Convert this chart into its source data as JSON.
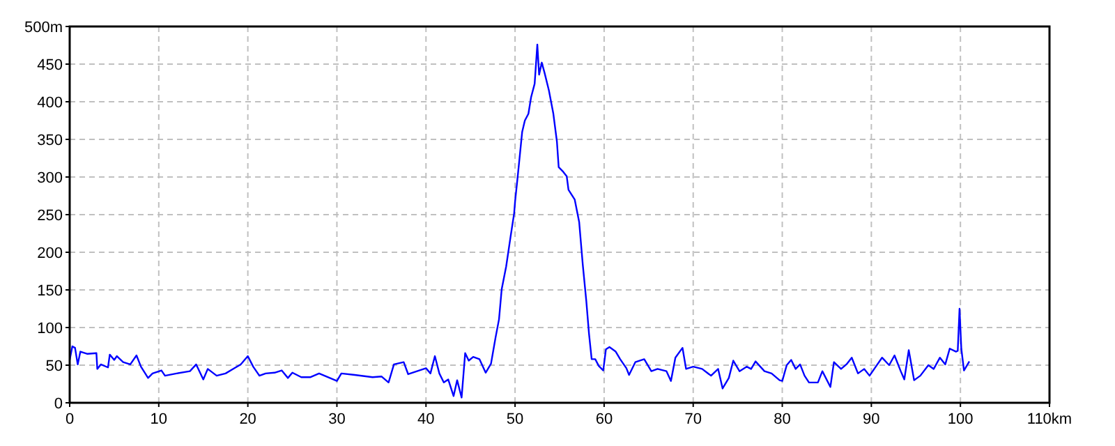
{
  "chart_data": {
    "type": "line",
    "xlim": [
      0,
      110
    ],
    "ylim": [
      0,
      500
    ],
    "xticks": [
      0,
      10,
      20,
      30,
      40,
      50,
      60,
      70,
      80,
      90,
      100,
      {
        "value": 110,
        "label": "110km"
      }
    ],
    "yticks": [
      0,
      50,
      100,
      150,
      200,
      250,
      300,
      350,
      400,
      450,
      {
        "value": 500,
        "label": "500m"
      }
    ],
    "grid": true,
    "line_style": "solid",
    "marker": "none",
    "series": [
      {
        "color": "#0000ff",
        "x": [
          0,
          0.3,
          0.6,
          0.9,
          1.2,
          2,
          3,
          3.1,
          3.5,
          4.3,
          4.5,
          5,
          5.3,
          6,
          6.8,
          7.5,
          8,
          8.8,
          9.3,
          10.3,
          10.7,
          12,
          13.5,
          14.2,
          15,
          15.5,
          16.5,
          17.5,
          18.5,
          19.2,
          20,
          20.6,
          21.3,
          22,
          23,
          23.8,
          24.5,
          25,
          26,
          27,
          28,
          30,
          30.5,
          32,
          34,
          35,
          35.8,
          36.4,
          37.5,
          38,
          39,
          40,
          40.5,
          41,
          41.5,
          42,
          42.5,
          43.1,
          43.5,
          44,
          44.4,
          44.8,
          45.3,
          46,
          46.7,
          47.3,
          47.8,
          48.2,
          48.5,
          49,
          49.5,
          49.9,
          50,
          50.3,
          50.8,
          51.1,
          51.5,
          51.8,
          52.2,
          52.5,
          52.7,
          53,
          53.3,
          53.8,
          54.3,
          54.7,
          54.9,
          55.4,
          55.8,
          56,
          56.7,
          57.2,
          57.6,
          58,
          58.3,
          58.6,
          59,
          59.4,
          59.9,
          60.2,
          60.6,
          61.3,
          61.8,
          62.5,
          62.8,
          63.5,
          64.5,
          65.3,
          66,
          67,
          67.5,
          68,
          68.8,
          69.2,
          70,
          71,
          72,
          72.8,
          73.3,
          74,
          74.5,
          75.2,
          76,
          76.5,
          77,
          78,
          78.8,
          79.7,
          80,
          80.5,
          81,
          81.5,
          82,
          82.5,
          83,
          84,
          84.5,
          85.4,
          85.8,
          86.6,
          87.2,
          87.8,
          88.5,
          89.2,
          89.8,
          90.5,
          91.2,
          92,
          92.6,
          93.3,
          93.7,
          94.2,
          94.8,
          95.5,
          96.4,
          97,
          97.7,
          98.3,
          98.8,
          99.5,
          99.7,
          99.9,
          100.1,
          100.4,
          101
        ],
        "values": [
          57,
          75,
          73,
          51,
          68,
          65,
          66,
          45,
          51,
          47,
          64,
          57,
          62,
          54,
          51,
          63,
          48,
          33,
          39,
          43,
          36,
          39,
          42,
          51,
          31,
          45,
          36,
          39,
          46,
          51,
          62,
          48,
          36,
          39,
          40,
          43,
          33,
          40,
          34,
          34,
          39,
          29,
          39,
          37,
          34,
          35,
          27,
          51,
          54,
          38,
          42,
          46,
          39,
          62,
          39,
          27,
          31,
          9,
          30,
          7,
          66,
          56,
          61,
          58,
          40,
          52,
          86,
          111,
          151,
          181,
          221,
          252,
          267,
          301,
          360,
          375,
          384,
          406,
          424,
          476,
          436,
          452,
          439,
          415,
          384,
          347,
          313,
          307,
          301,
          283,
          270,
          240,
          184,
          135,
          92,
          58,
          58,
          49,
          43,
          71,
          74,
          68,
          58,
          46,
          37,
          54,
          58,
          42,
          45,
          42,
          29,
          60,
          73,
          45,
          48,
          45,
          36,
          45,
          19,
          33,
          56,
          42,
          48,
          45,
          55,
          42,
          39,
          30,
          29,
          50,
          57,
          45,
          51,
          36,
          27,
          27,
          42,
          21,
          54,
          45,
          51,
          60,
          39,
          45,
          36,
          48,
          60,
          50,
          63,
          42,
          31,
          70,
          30,
          36,
          50,
          45,
          60,
          51,
          72,
          68,
          69,
          125,
          72,
          43,
          55
        ]
      }
    ]
  }
}
